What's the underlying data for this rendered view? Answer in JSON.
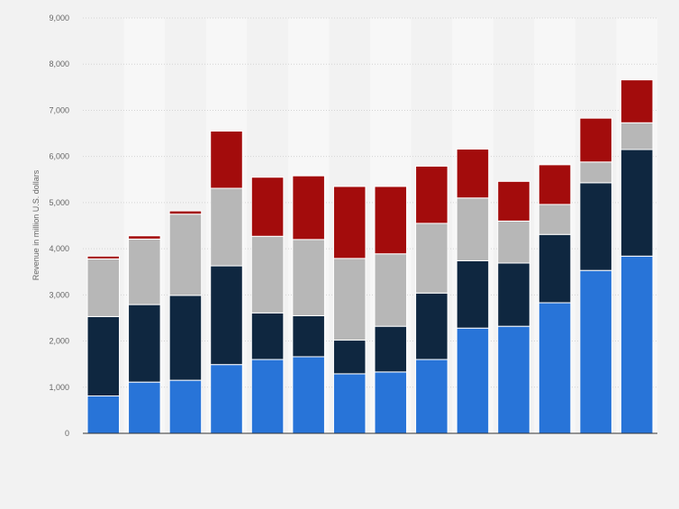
{
  "chart_data": {
    "type": "bar",
    "stacked": true,
    "ylabel": "Revenue in million U.S. dollars",
    "xlabel": "",
    "ylim": [
      0,
      9000
    ],
    "yticks": [
      0,
      1000,
      2000,
      3000,
      4000,
      5000,
      6000,
      7000,
      8000,
      9000
    ],
    "ytick_labels": [
      "0",
      "1,000",
      "2,000",
      "3,000",
      "4,000",
      "5,000",
      "6,000",
      "7,000",
      "8,000",
      "9,000"
    ],
    "grid": true,
    "legend": "none",
    "categories": [
      "",
      "",
      "",
      "",
      "",
      "",
      "",
      "",
      "",
      "",
      "",
      "",
      "",
      ""
    ],
    "series": [
      {
        "color": "#2874d8",
        "values": [
          810,
          1110,
          1150,
          1490,
          1600,
          1660,
          1290,
          1330,
          1600,
          2280,
          2320,
          2830,
          3530,
          3840
        ]
      },
      {
        "color": "#0f2740",
        "values": [
          1720,
          1680,
          1840,
          2140,
          1010,
          890,
          730,
          990,
          1440,
          1460,
          1370,
          1480,
          1900,
          2310
        ]
      },
      {
        "color": "#b7b7b7",
        "values": [
          1250,
          1420,
          1760,
          1680,
          1660,
          1650,
          1770,
          1570,
          1510,
          1360,
          910,
          650,
          450,
          580
        ]
      },
      {
        "color": "#a30c0c",
        "values": [
          60,
          70,
          70,
          1240,
          1280,
          1380,
          1560,
          1460,
          1240,
          1060,
          860,
          860,
          950,
          930
        ]
      }
    ]
  }
}
